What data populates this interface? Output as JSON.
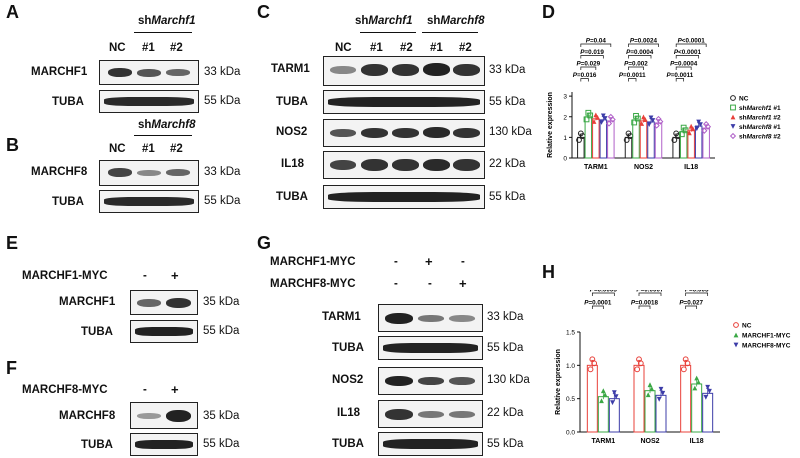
{
  "panels": {
    "A": "A",
    "B": "B",
    "C": "C",
    "D": "D",
    "E": "E",
    "F": "F",
    "G": "G",
    "H": "H"
  },
  "A": {
    "group": "shMarchf1",
    "lanes": [
      "NC",
      "#1",
      "#2"
    ],
    "rows": [
      {
        "label": "MARCHF1",
        "kda": "33 kDa"
      },
      {
        "label": "TUBA",
        "kda": "55 kDa"
      }
    ]
  },
  "B": {
    "group": "shMarchf8",
    "lanes": [
      "NC",
      "#1",
      "#2"
    ],
    "rows": [
      {
        "label": "MARCHF8",
        "kda": "33 kDa"
      },
      {
        "label": "TUBA",
        "kda": "55 kDa"
      }
    ]
  },
  "C": {
    "group1": "shMarchf1",
    "group2": "shMarchf8",
    "lanes": [
      "NC",
      "#1",
      "#2",
      "#1",
      "#2"
    ],
    "rows": [
      {
        "label": "TARM1",
        "kda": "33 kDa"
      },
      {
        "label": "TUBA",
        "kda": "55 kDa"
      },
      {
        "label": "NOS2",
        "kda": "130 kDa"
      },
      {
        "label": "IL18",
        "kda": "22 kDa"
      },
      {
        "label": "TUBA",
        "kda": "55 kDa"
      }
    ]
  },
  "E": {
    "condition": "MARCHF1-MYC",
    "signs": [
      "-",
      "+"
    ],
    "rows": [
      {
        "label": "MARCHF1",
        "kda": "35 kDa"
      },
      {
        "label": "TUBA",
        "kda": "55 kDa"
      }
    ]
  },
  "F": {
    "condition": "MARCHF8-MYC",
    "signs": [
      "-",
      "+"
    ],
    "rows": [
      {
        "label": "MARCHF8",
        "kda": "35 kDa"
      },
      {
        "label": "TUBA",
        "kda": "55 kDa"
      }
    ]
  },
  "G": {
    "conditions": [
      {
        "label": "MARCHF1-MYC",
        "signs": [
          "-",
          "+",
          "-"
        ]
      },
      {
        "label": "MARCHF8-MYC",
        "signs": [
          "-",
          "-",
          "+"
        ]
      }
    ],
    "rows": [
      {
        "label": "TARM1",
        "kda": "33 kDa"
      },
      {
        "label": "TUBA",
        "kda": "55 kDa"
      },
      {
        "label": "NOS2",
        "kda": "130 kDa"
      },
      {
        "label": "IL18",
        "kda": "22 kDa"
      },
      {
        "label": "TUBA",
        "kda": "55 kDa"
      }
    ]
  },
  "chart_data": [
    {
      "panel": "D",
      "type": "bar",
      "ylabel": "Relative expression",
      "xlabel": "",
      "ylim": [
        0,
        3.2
      ],
      "yticks": [
        0,
        1,
        2,
        3
      ],
      "categories": [
        "TARM1",
        "NOS2",
        "IL18"
      ],
      "legend_position": "right",
      "series": [
        {
          "name": "NC",
          "color": "#222222",
          "marker": "circle",
          "values": [
            1.0,
            1.0,
            1.0
          ]
        },
        {
          "name": "shMarchf1 #1",
          "color": "#3aa845",
          "marker": "square",
          "values": [
            2.0,
            1.85,
            1.28
          ]
        },
        {
          "name": "shMarchf1 #2",
          "color": "#e8403a",
          "marker": "triangle",
          "values": [
            1.9,
            1.8,
            1.35
          ]
        },
        {
          "name": "shMarchf8 #1",
          "color": "#3c3ca8",
          "marker": "triangle-down",
          "values": [
            1.85,
            1.75,
            1.55
          ]
        },
        {
          "name": "shMarchf8 #2",
          "color": "#b060c8",
          "marker": "diamond",
          "values": [
            1.8,
            1.7,
            1.45
          ]
        }
      ],
      "annotations": [
        {
          "category": "TARM1",
          "p": [
            "P=0.04",
            "P=0.019",
            "P=0.029",
            "P=0.016"
          ]
        },
        {
          "category": "NOS2",
          "p": [
            "P=0.0024",
            "P=0.0004",
            "P=0.002",
            "P=0.0011"
          ]
        },
        {
          "category": "IL18",
          "p": [
            "P<0.0001",
            "P<0.0001",
            "P=0.0004",
            "P=0.0011"
          ]
        }
      ]
    },
    {
      "panel": "H",
      "type": "bar",
      "ylabel": "Relative expression",
      "xlabel": "",
      "ylim": [
        0,
        1.5
      ],
      "yticks": [
        0.0,
        0.5,
        1.0,
        1.5
      ],
      "yticklabels": [
        "0.0",
        "0.5",
        "1.0",
        "1.5"
      ],
      "categories": [
        "TARM1",
        "NOS2",
        "IL18"
      ],
      "legend_position": "right",
      "series": [
        {
          "name": "NC",
          "color": "#e8403a",
          "marker": "circle",
          "values": [
            1.0,
            1.0,
            1.0
          ]
        },
        {
          "name": "MARCHF1-MYC",
          "color": "#3aa845",
          "marker": "triangle",
          "values": [
            0.53,
            0.62,
            0.72
          ]
        },
        {
          "name": "MARCHF8-MYC",
          "color": "#3c3ca8",
          "marker": "triangle-down",
          "values": [
            0.5,
            0.55,
            0.58
          ]
        }
      ],
      "annotations": [
        {
          "category": "TARM1",
          "p": [
            "P=0.0003",
            "P=0.0001"
          ]
        },
        {
          "category": "NOS2",
          "p": [
            "P=0.0007",
            "P=0.0018"
          ]
        },
        {
          "category": "IL18",
          "p": [
            "P=0.003",
            "P=0.027"
          ]
        }
      ]
    }
  ]
}
